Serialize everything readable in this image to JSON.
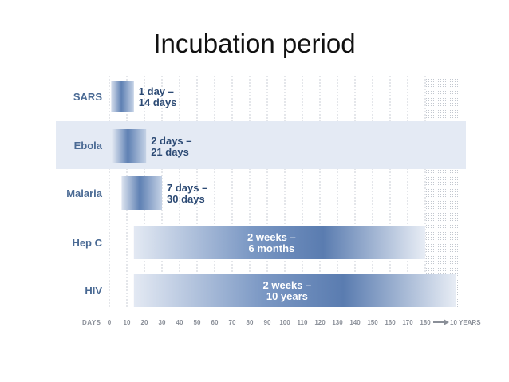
{
  "slide": {
    "title": "Incubation period"
  },
  "chart_data": {
    "type": "bar",
    "orientation": "horizontal",
    "title": "Incubation period",
    "xlabel": "DAYS",
    "x_ticks": [
      "0",
      "10",
      "20",
      "30",
      "40",
      "50",
      "60",
      "70",
      "80",
      "90",
      "100",
      "110",
      "120",
      "130",
      "140",
      "150",
      "160",
      "170",
      "180"
    ],
    "x_end_label": "10 YEARS",
    "xlim": [
      0,
      180
    ],
    "grid": true,
    "categories": [
      "SARS",
      "Ebola",
      "Malaria",
      "Hep C",
      "HIV"
    ],
    "ranges": [
      {
        "disease": "SARS",
        "start_days": 1,
        "end_days": 14,
        "label_line1": "1 day –",
        "label_line2": "14 days"
      },
      {
        "disease": "Ebola",
        "start_days": 2,
        "end_days": 21,
        "label_line1": "2 days –",
        "label_line2": "21 days"
      },
      {
        "disease": "Malaria",
        "start_days": 7,
        "end_days": 30,
        "label_line1": "7 days –",
        "label_line2": "30 days"
      },
      {
        "disease": "Hep C",
        "start_days": 14,
        "end_days": 180,
        "label_line1": "2 weeks –",
        "label_line2": "6 months"
      },
      {
        "disease": "HIV",
        "start_days": 14,
        "end_days": "10 years",
        "label_line1": "2 weeks –",
        "label_line2": "10 years"
      }
    ],
    "colors": {
      "label_text": "#4a6a94",
      "bar_dark": "#5b7db0",
      "bar_light": "#dbe3f0",
      "stripe": "#e4eaf4",
      "grid": "#c8cdd6",
      "value_text_dark": "#2c4a74"
    }
  }
}
